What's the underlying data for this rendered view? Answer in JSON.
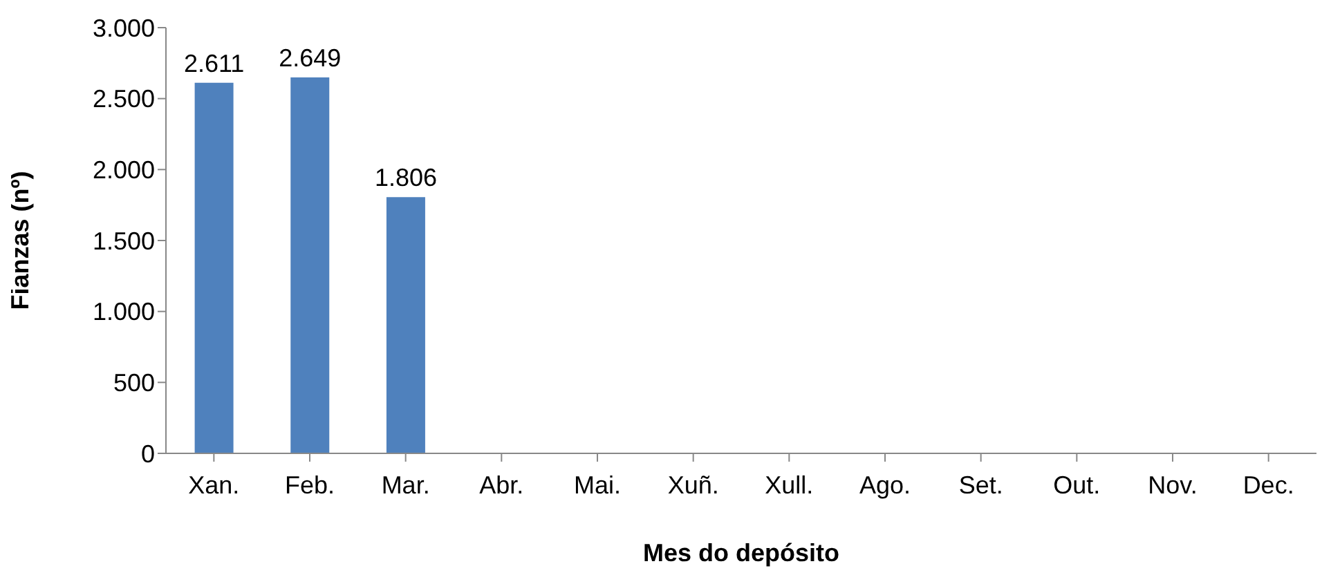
{
  "chart_data": {
    "type": "bar",
    "xlabel": "Mes do depósito",
    "ylabel": "Fianzas (nº)",
    "categories": [
      "Xan.",
      "Feb.",
      "Mar.",
      "Abr.",
      "Mai.",
      "Xuñ.",
      "Xull.",
      "Ago.",
      "Set.",
      "Out.",
      "Nov.",
      "Dec."
    ],
    "values": [
      2611,
      2649,
      1806,
      null,
      null,
      null,
      null,
      null,
      null,
      null,
      null,
      null
    ],
    "value_labels": [
      "2.611",
      "2.649",
      "1.806",
      null,
      null,
      null,
      null,
      null,
      null,
      null,
      null,
      null
    ],
    "color": "#4f81bd",
    "ylim": [
      0,
      3000
    ],
    "yticks": [
      0,
      500,
      {
        "value": 1000,
        "label": "1.000"
      },
      {
        "value": 1500,
        "label": "1.500"
      },
      {
        "value": 2000,
        "label": "2.000"
      },
      {
        "value": 2500,
        "label": "2.500"
      },
      {
        "value": 3000,
        "label": "3.000"
      }
    ],
    "grid": false,
    "legend": false
  }
}
